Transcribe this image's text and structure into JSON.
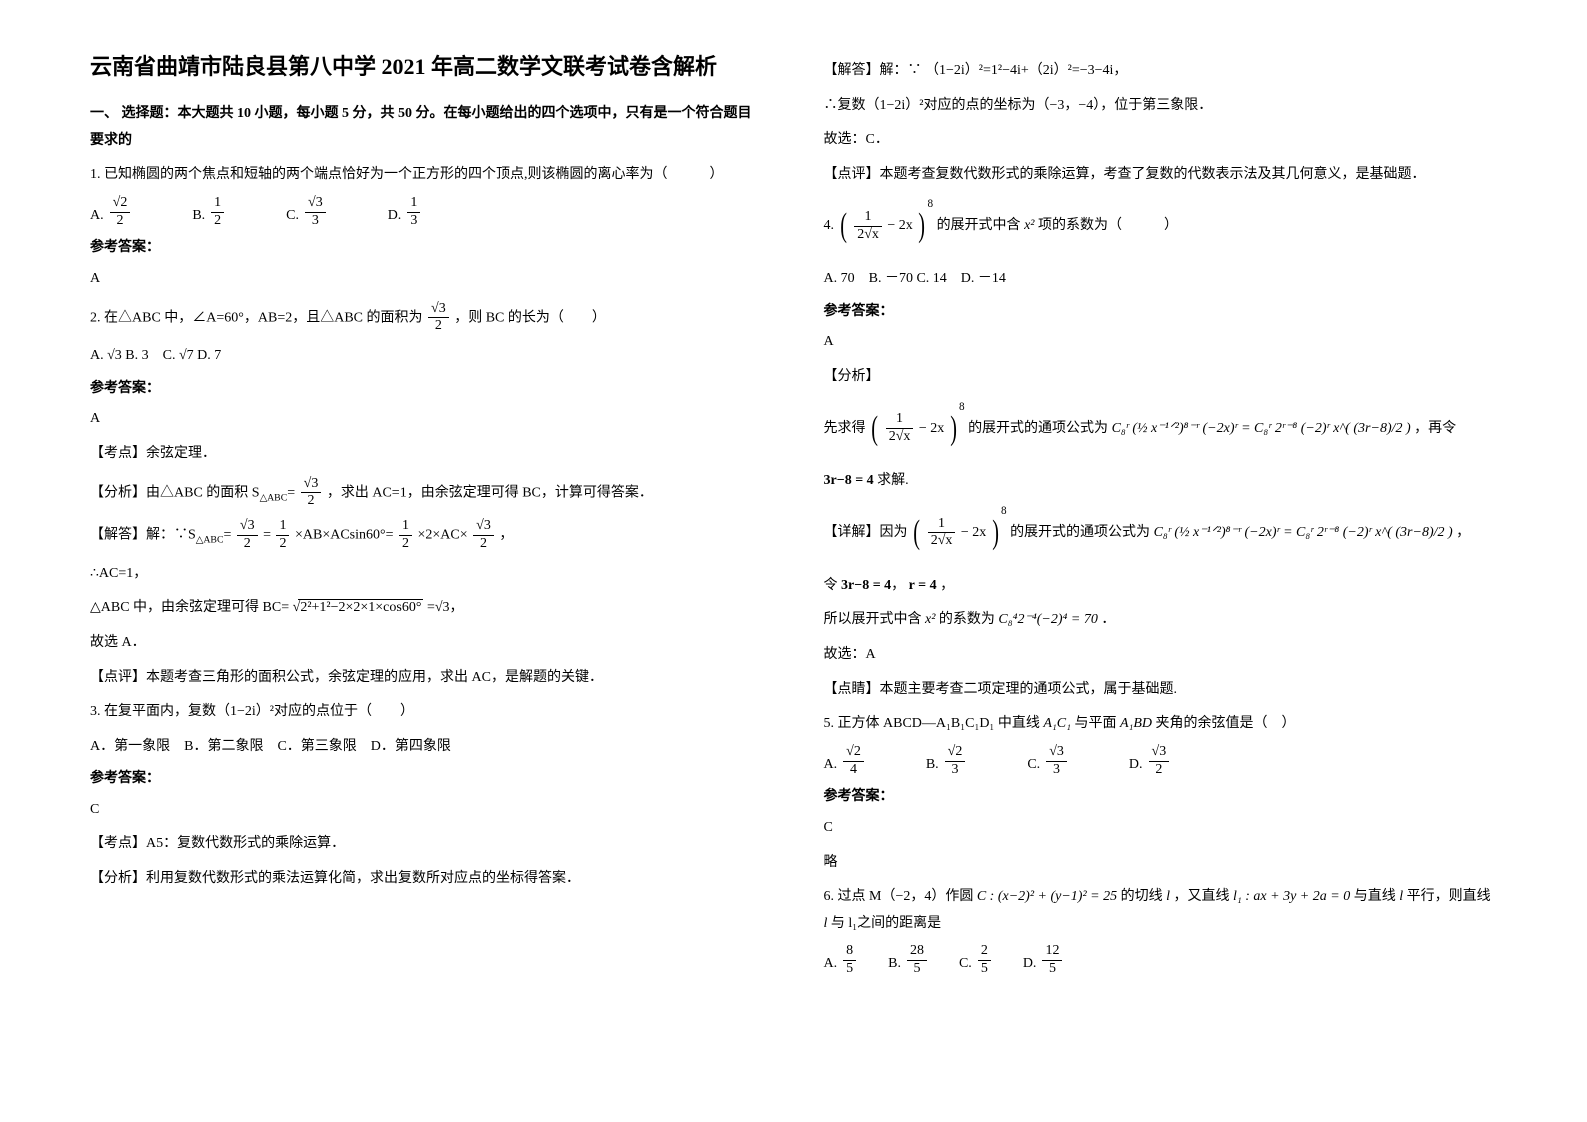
{
  "title": "云南省曲靖市陆良县第八中学 2021 年高二数学文联考试卷含解析",
  "section1_head": "一、 选择题：本大题共 10 小题，每小题 5 分，共 50 分。在每小题给出的四个选项中，只有是一个符合题目要求的",
  "q1": {
    "stem": "1. 已知椭圆的两个焦点和短轴的两个端点恰好为一个正方形的四个顶点,则该椭圆的离心率为（　　　）",
    "optA": "A.",
    "optB": "B.",
    "optC": "C.",
    "optD": "D.",
    "ans_label": "参考答案：",
    "ans": "A"
  },
  "q2": {
    "stem_a": "2. 在△ABC 中，∠A=60°，AB=2，且△ABC 的面积为",
    "stem_b": "，则 BC 的长为（　　）",
    "opts": "A. √3 B. 3　C. √7 D. 7",
    "ans_label": "参考答案：",
    "ans": "A",
    "kaodian": "【考点】余弦定理．",
    "fenxi_a": "【分析】由△ABC 的面积 S",
    "fenxi_b": "，求出 AC=1，由余弦定理可得 BC，计算可得答案．",
    "jieda_a": "【解答】解：∵S",
    "jieda_b": "×AB×ACsin60°=",
    "jieda_c": "×2×AC×",
    "jieda_d": "，",
    "ac1": "∴AC=1，",
    "bc_a": "△ABC 中，由余弦定理可得 BC=",
    "bc_root": "2²+1²−2×2×1×cos60°",
    "bc_b": "=√3，",
    "guxuan": "故选 A．",
    "dianping": "【点评】本题考查三角形的面积公式，余弦定理的应用，求出 AC，是解题的关键．"
  },
  "q3": {
    "stem": "3. 在复平面内，复数（1−2i）²对应的点位于（　　）",
    "opts": "A．第一象限　B．第二象限　C．第三象限　D．第四象限",
    "ans_label": "参考答案：",
    "ans": "C",
    "kaodian": "【考点】A5：复数代数形式的乘除运算．",
    "fenxi": "【分析】利用复数代数形式的乘法运算化简，求出复数所对应点的坐标得答案．",
    "jieda_a": "【解答】解：∵ （1−2i）²=1²−4i+（2i）²=−3−4i，",
    "jieda_b": "∴复数（1−2i）²对应的点的坐标为（−3，−4），位于第三象限．",
    "guxuan": "故选：C．",
    "dianping": "【点评】本题考查复数代数形式的乘除运算，考查了复数的代数表示法及其几何意义，是基础题．"
  },
  "q4": {
    "stem_a": "4.",
    "stem_b": "的展开式中含",
    "stem_c": "项的系数为（　　　）",
    "opts": "A. 70　B. －70 C. 14　D. －14",
    "ans_label": "参考答案：",
    "ans": "A",
    "fenxi_label": "【分析】",
    "fenxi_a": "先求得",
    "fenxi_b": "的展开式的通项公式为",
    "fenxi_c": "，再令",
    "fenxi_d": "求解.",
    "xiangjie_a": "【详解】因为",
    "xiangjie_b": "的展开式的通项公式为",
    "xiangjie_c": "，",
    "ling": "令",
    "ling_b": "，",
    "suoyi_a": "所以展开式中含",
    "suoyi_b": "的系数为",
    "suoyi_c": "．",
    "guxuan": "故选：A",
    "dianjing": "【点睛】本题主要考查二项定理的通项公式，属于基础题."
  },
  "q5": {
    "stem_a": "5. 正方体 ABCD—A₁B₁C₁D₁ 中直线",
    "stem_b": "与平面",
    "stem_c": "夹角的余弦值是（　）",
    "optA": "A.",
    "optB": "B.",
    "optC": "C.",
    "optD": "D.",
    "ans_label": "参考答案：",
    "ans": "C",
    "lue": "略"
  },
  "q6": {
    "stem_a": "6. 过点 M（−2，4）作圆",
    "stem_b": "的切线",
    "stem_c": "，又直线",
    "stem_d": "与直线",
    "stem_e": "平行，则直线",
    "stem_f": "与 l₁之间的距离是",
    "optA": "A.",
    "optB": "B.",
    "optC": "C.",
    "optD": "D."
  },
  "math": {
    "sqrt2": "2",
    "sqrt3": "3",
    "sqrt7": "7",
    "half": "2",
    "third": "3",
    "one": "1",
    "A1C1": "A₁C₁",
    "A1BD": "A₁BD",
    "x2": "x²",
    "eq3r8_4": "3r−8 = 4",
    "r4": "r = 4",
    "C42470": "C₈⁴2⁻⁴(−2)⁴ = 70",
    "circleC": "C : (x−2)² + (y−1)² = 25",
    "l": "l",
    "l1": "l₁ : ax + 3y + 2a = 0",
    "frac85n": "8",
    "frac85d": "5",
    "frac285n": "28",
    "frac285d": "5",
    "frac25n": "2",
    "frac25d": "5",
    "frac125n": "12",
    "frac125d": "5",
    "expr_main_a": "1",
    "expr_main_b": "2√x",
    "expr_main_c": "− 2x",
    "expr_main_pow": "8",
    "tongxiang": "C₈ʳ (½ x⁻¹ᐟ²)⁸⁻ʳ (−2x)ʳ = C₈ʳ 2ʳ⁻⁸ (−2)ʳ x^( (3r−8)/2 )",
    "sabc": "△ABC",
    "eq": "="
  }
}
